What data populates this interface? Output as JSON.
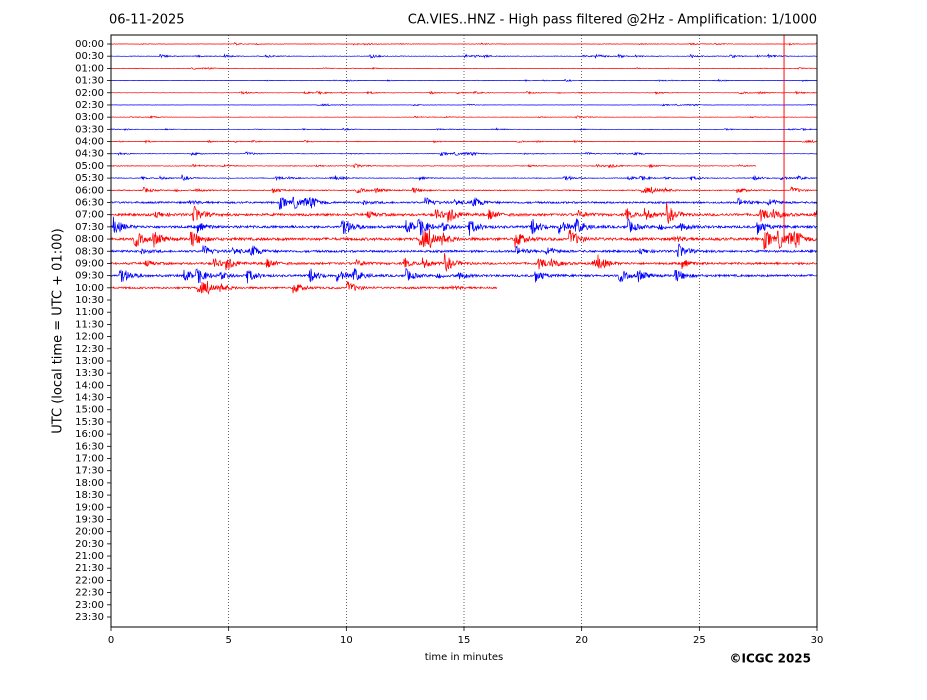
{
  "chart_data": {
    "type": "helicorder",
    "date": "06-11-2025",
    "title": "CA.VIES..HNZ - High pass filtered @2Hz - Amplification: 1/1000",
    "ylabel": "UTC (local time = UTC + 01:00)",
    "xlabel": "time in minutes",
    "copyright": "©ICGC 2025",
    "xlim": [
      0,
      30
    ],
    "xticks": [
      0,
      5,
      10,
      15,
      20,
      25,
      30
    ],
    "grid_x": [
      5,
      10,
      15,
      20,
      25
    ],
    "categories": [
      "00:00",
      "00:30",
      "01:00",
      "01:30",
      "02:00",
      "02:30",
      "03:00",
      "03:30",
      "04:00",
      "04:30",
      "05:00",
      "05:30",
      "06:00",
      "06:30",
      "07:00",
      "07:30",
      "08:00",
      "08:30",
      "09:00",
      "09:30",
      "10:00",
      "10:30",
      "11:00",
      "11:30",
      "12:00",
      "12:30",
      "13:00",
      "13:30",
      "14:00",
      "14:30",
      "15:00",
      "15:30",
      "16:00",
      "16:30",
      "17:00",
      "17:30",
      "18:00",
      "18:30",
      "19:00",
      "19:30",
      "20:00",
      "20:30",
      "21:00",
      "21:30",
      "22:00",
      "22:30",
      "23:00",
      "23:30"
    ],
    "colors": [
      "#ff0000",
      "#0000ff"
    ],
    "traces": [
      {
        "end": 30,
        "amplitude": 0.05
      },
      {
        "end": 30,
        "amplitude": 0.08
      },
      {
        "end": 30,
        "amplitude": 0.04
      },
      {
        "end": 30,
        "amplitude": 0.04
      },
      {
        "end": 30,
        "amplitude": 0.06
      },
      {
        "end": 30,
        "amplitude": 0.04
      },
      {
        "end": 30,
        "amplitude": 0.06
      },
      {
        "end": 30,
        "amplitude": 0.04
      },
      {
        "end": 30,
        "amplitude": 0.05
      },
      {
        "end": 30,
        "amplitude": 0.08
      },
      {
        "end": 27.4,
        "amplitude": 0.1
      },
      {
        "end": 30,
        "amplitude": 0.1
      },
      {
        "end": 30,
        "amplitude": 0.15
      },
      {
        "end": 30,
        "amplitude": 0.3
      },
      {
        "end": 30,
        "amplitude": 0.4
      },
      {
        "end": 30,
        "amplitude": 0.4
      },
      {
        "end": 30,
        "amplitude": 0.45
      },
      {
        "end": 30,
        "amplitude": 0.35
      },
      {
        "end": 30,
        "amplitude": 0.35
      },
      {
        "end": 30,
        "amplitude": 0.35
      },
      {
        "end": 16.4,
        "amplitude": 0.3
      }
    ],
    "spike": {
      "x": 28.6,
      "end_row": 16.2
    }
  }
}
